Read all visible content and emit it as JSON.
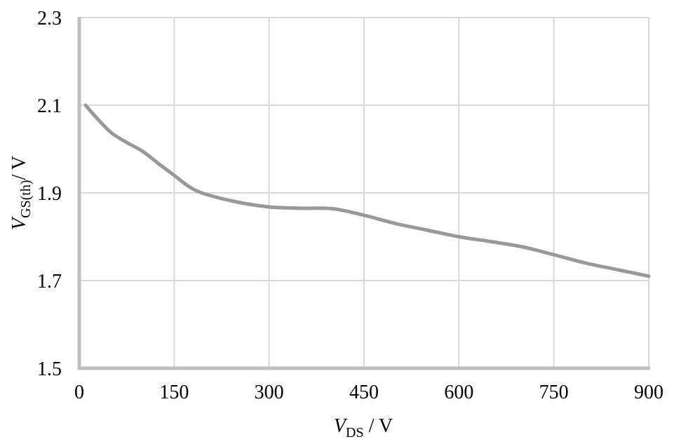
{
  "chart_data": {
    "type": "line",
    "title": "",
    "xlabel": {
      "var": "V",
      "sub": "DS",
      "unit": " / V"
    },
    "ylabel": {
      "var": "V",
      "sub": "GS(th)",
      "unit": "/ V"
    },
    "xlim": [
      0,
      900
    ],
    "ylim": [
      1.5,
      2.3
    ],
    "xticks": [
      0,
      150,
      300,
      450,
      600,
      750,
      900
    ],
    "xtick_labels": [
      "0",
      "150",
      "300",
      "450",
      "600",
      "750",
      "900"
    ],
    "yticks": [
      1.5,
      1.7,
      1.9,
      2.1,
      2.3
    ],
    "ytick_labels": [
      "1.5",
      "1.7",
      "1.9",
      "2.1",
      "2.3"
    ],
    "grid": true,
    "legend": "none",
    "series": [
      {
        "color": "#999999",
        "x": [
          10,
          25,
          50,
          75,
          100,
          125,
          150,
          175,
          200,
          250,
          300,
          350,
          400,
          450,
          500,
          550,
          600,
          650,
          700,
          750,
          800,
          850,
          900
        ],
        "y": [
          2.1,
          2.075,
          2.038,
          2.015,
          1.995,
          1.967,
          1.94,
          1.913,
          1.897,
          1.879,
          1.868,
          1.865,
          1.864,
          1.849,
          1.83,
          1.815,
          1.8,
          1.789,
          1.777,
          1.759,
          1.74,
          1.725,
          1.71
        ]
      }
    ]
  },
  "colors": {
    "grid": "#d9d9d9",
    "axis": "#bfbfbf",
    "line": "#999999"
  }
}
